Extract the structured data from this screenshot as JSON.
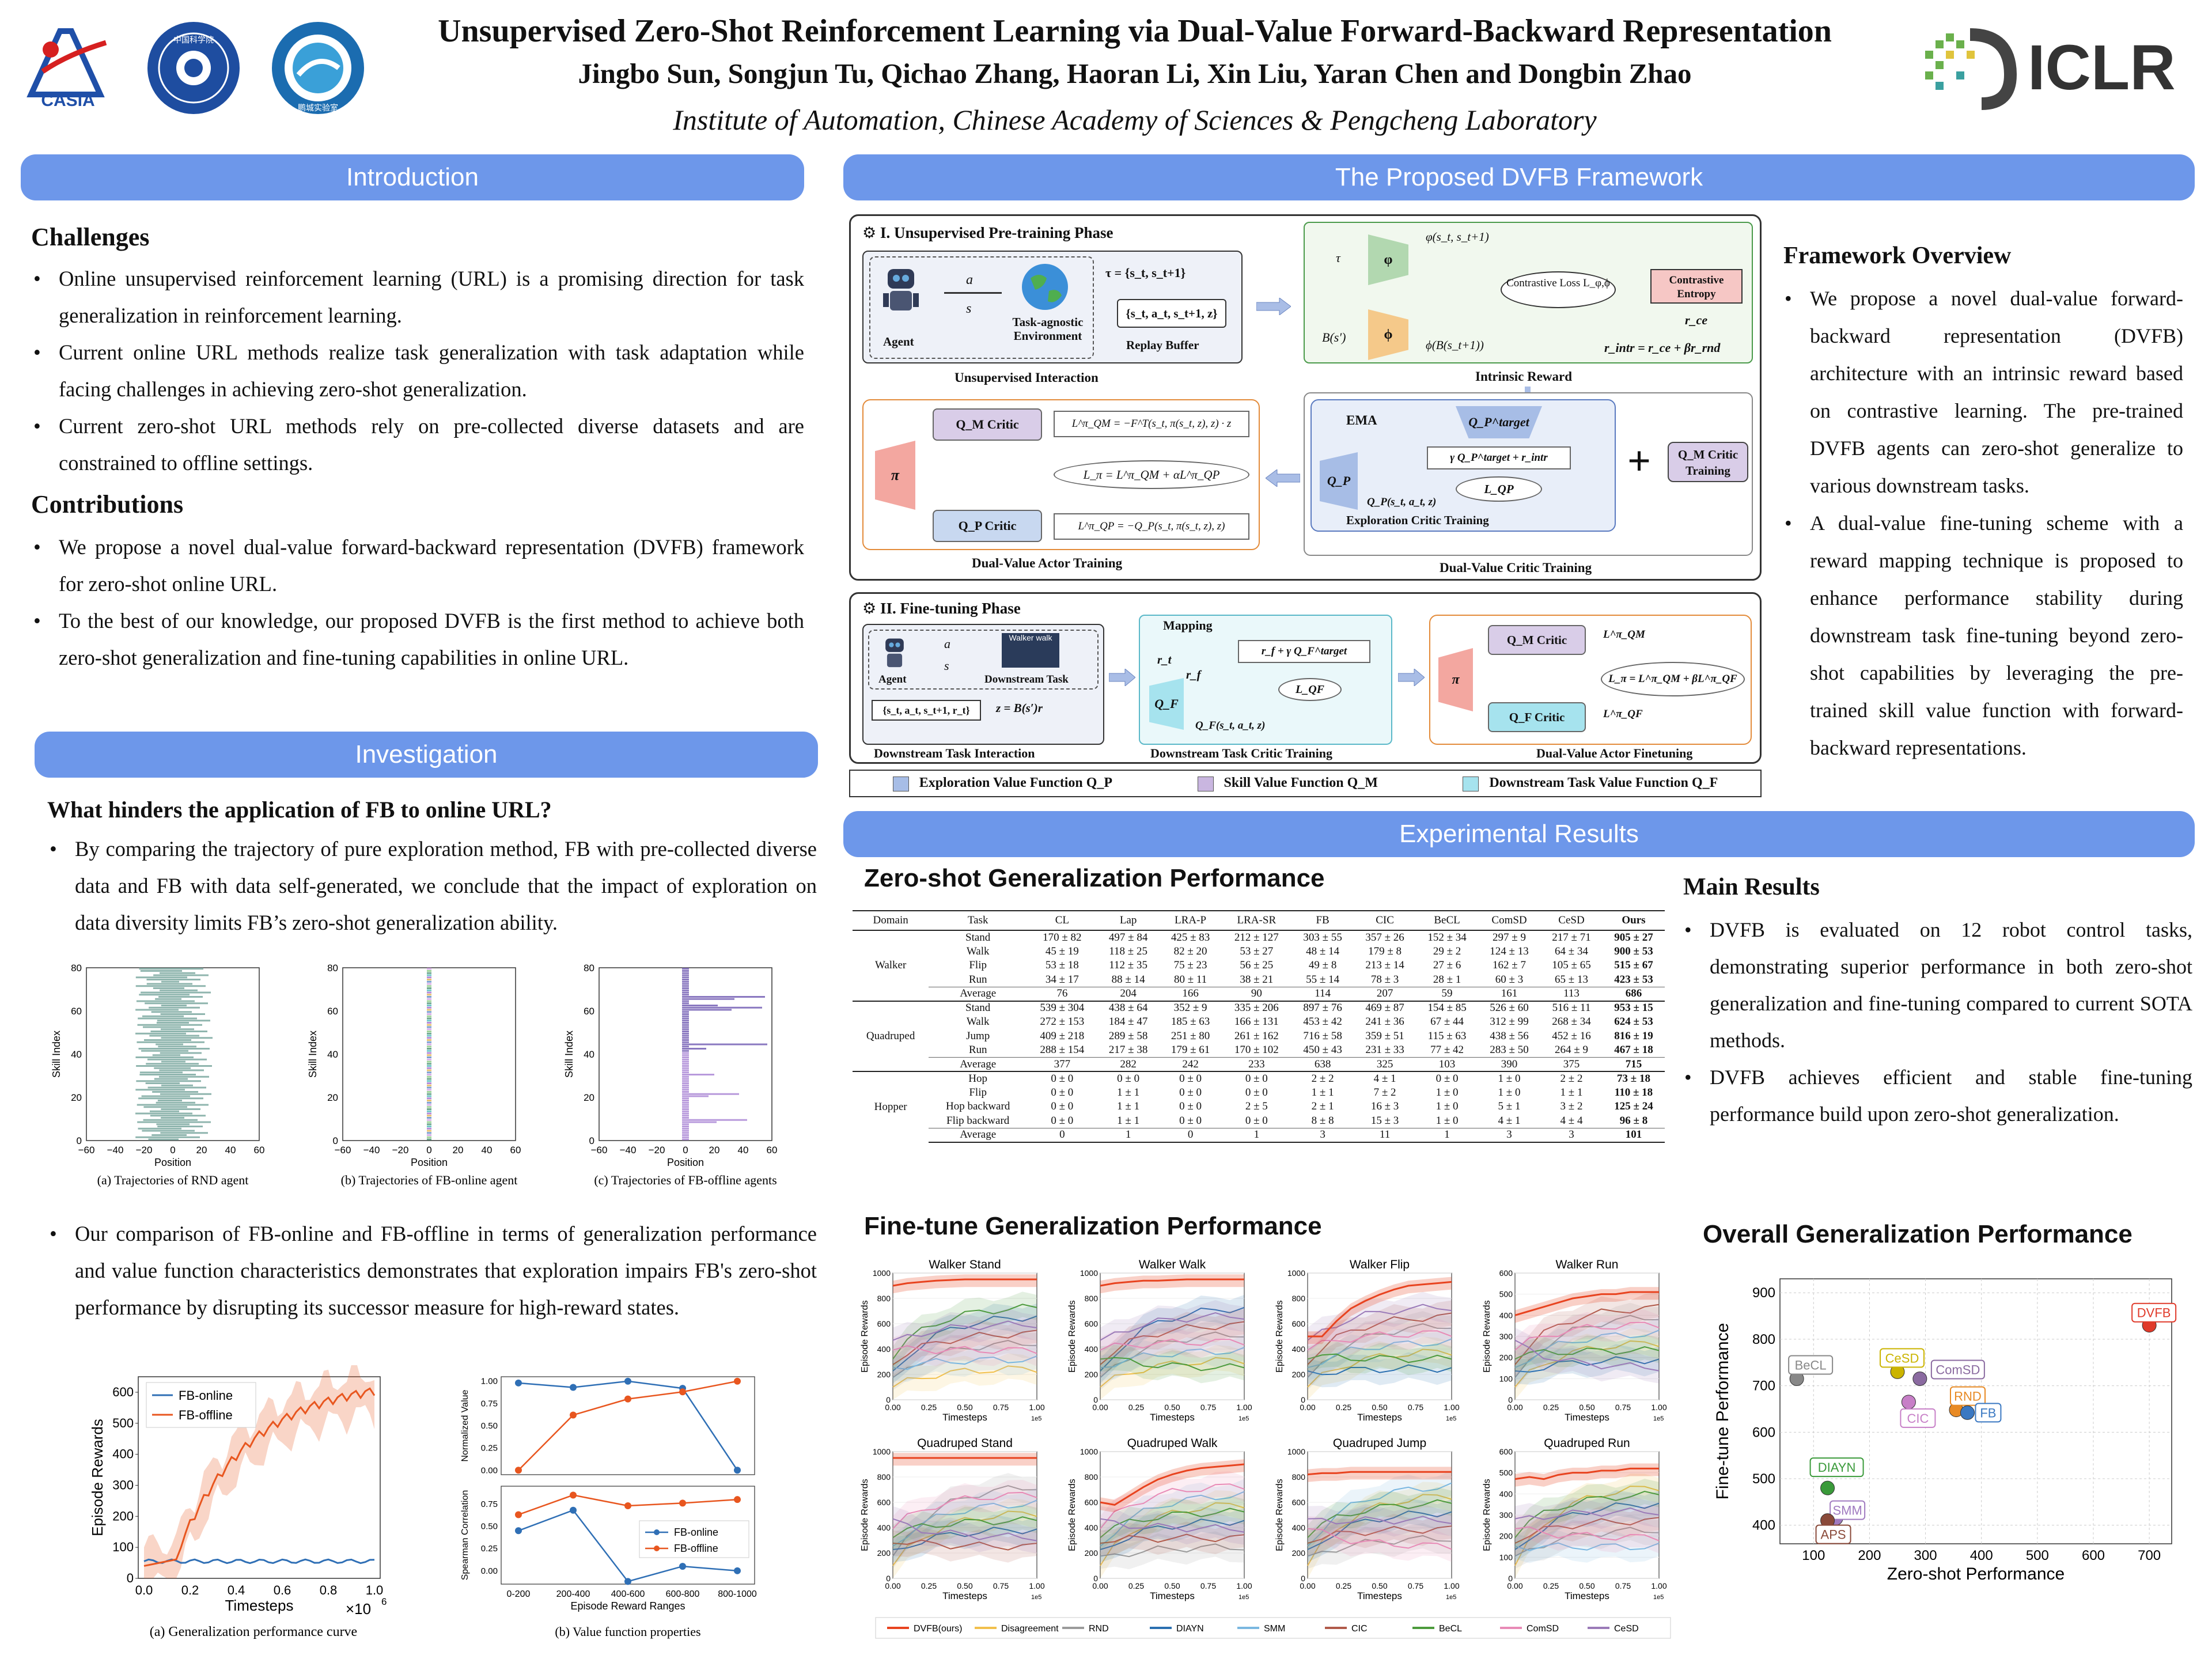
{
  "header": {
    "title": "Unsupervised Zero-Shot Reinforcement Learning via Dual-Value Forward-Backward Representation",
    "authors": "Jingbo Sun, Songjun Tu, Qichao Zhang, Haoran Li, Xin Liu, Yaran Chen and Dongbin Zhao",
    "affiliation": "Institute of Automation, Chinese Academy of Sciences & Pengcheng Laboratory",
    "logos": [
      "CASIA",
      "中国科学院",
      "鹏城实验室"
    ],
    "iclr": "ICLR"
  },
  "intro": {
    "banner": "Introduction",
    "challenges_h": "Challenges",
    "challenges": [
      "Online unsupervised reinforcement learning (URL) is a promising direction for task generalization in reinforcement learning.",
      "Current online URL methods realize task generalization with task adaptation while facing challenges in achieving zero-shot generalization.",
      "Current zero-shot URL methods rely on pre-collected diverse datasets and are constrained to offline settings."
    ],
    "contrib_h": "Contributions",
    "contributions": [
      "We propose a novel dual-value forward-backward representation (DVFB) framework for zero-shot online URL.",
      "To the best of our knowledge, our proposed DVFB is the first method to achieve both zero-shot generalization and fine-tuning capabilities in online URL."
    ]
  },
  "invest": {
    "banner": "Investigation",
    "question": "What hinders the application of FB to online URL?",
    "b1": "By comparing the trajectory of pure exploration method, FB with pre-collected diverse data and FB with data self-generated, we conclude that the impact of exploration on data diversity limits FB’s zero-shot generalization ability.",
    "b2": "Our comparison of FB-online and FB-offline in terms of generalization performance and value function characteristics demonstrates that exploration impairs FB's zero-shot performance by disrupting its successor measure for high-reward states.",
    "traj_ylabel": "Skill Index",
    "traj_xlabel": "Position",
    "traj_captions": [
      "(a) Trajectories of RND agent",
      "(b) Trajectories of FB-online agent",
      "(c) Trajectories of FB-offline agents"
    ],
    "traj_xticks": [
      "−60",
      "−40",
      "−20",
      "0",
      "20",
      "40",
      "60"
    ],
    "traj_yticks": [
      "0",
      "20",
      "40",
      "60",
      "80"
    ],
    "curve": {
      "ylabel": "Episode Rewards",
      "xlabel": "Timesteps",
      "scale": "×10",
      "scale_exp": "6",
      "legend": [
        "FB-online",
        "FB-offline"
      ],
      "yticks": [
        "0",
        "100",
        "200",
        "300",
        "400",
        "500",
        "600"
      ],
      "xticks": [
        "0.0",
        "0.2",
        "0.4",
        "0.6",
        "0.8",
        "1.0"
      ],
      "caption": "(a) Generalization performance curve"
    },
    "vprop": {
      "ylabel_top": "Normalized Value",
      "ylabel_bot": "Spearman Correlation",
      "xlabel": "Episode Reward Ranges",
      "categories": [
        "0-200",
        "200-400",
        "400-600",
        "600-800",
        "800-1000"
      ],
      "norm_online": [
        0.98,
        0.93,
        1.0,
        0.92,
        0.0
      ],
      "norm_offline": [
        0.0,
        0.62,
        0.8,
        0.88,
        1.0
      ],
      "sp_online": [
        0.45,
        0.68,
        -0.12,
        0.05,
        0.0
      ],
      "sp_offline": [
        0.63,
        0.85,
        0.73,
        0.76,
        0.8
      ],
      "yticks_top": [
        "0.00",
        "0.25",
        "0.50",
        "0.75",
        "1.00"
      ],
      "yticks_bot": [
        "0.00",
        "0.25",
        "0.50",
        "0.75"
      ],
      "legend": [
        "FB-online",
        "FB-offline"
      ],
      "caption": "(b) Value function properties"
    },
    "colors": {
      "online": "#2f6fb5",
      "offline": "#e8561f"
    }
  },
  "framework": {
    "banner": "The Proposed DVFB Framework",
    "p1": "I. Unsupervised Pre-training Phase",
    "p2": "II. Fine-tuning Phase",
    "agent": "Agent",
    "env": "Task-agnostic Environment",
    "tau": "τ = {s_t, s_t+1}",
    "buffer": "{s_t, a_t, s_t+1, z}",
    "replay": "Replay Buffer",
    "a": "a",
    "s": "s",
    "ui": "Unsupervised Interaction",
    "ir": "Intrinsic Reward",
    "contrast": "Contrastive Loss L_φ,ϕ",
    "ce": "Contrastive Entropy",
    "phi_top": "φ(s_t, s_t+1)",
    "phi_bot": "ϕ(B(s_t+1))",
    "r_ce": "r_ce",
    "rintr": "r_intr = r_ce + βr_rnd",
    "tau_l": "τ",
    "bsp": "B(s′)",
    "phi": "φ",
    "phi2": "ϕ",
    "qm_critic": "Q_M Critic",
    "qp_critic": "Q_P Critic",
    "pi": "π",
    "l_qm": "L^π_QM = −F^T(s_t, π(s_t, z), z) · z",
    "l_pi": "L_π = L^π_QM + αL^π_QP",
    "l_qp": "L^π_QP = −Q_P(s_t, π(s_t, z), z)",
    "dva": "Dual-Value Actor Training",
    "dvc": "Dual-Value Critic Training",
    "ema": "EMA",
    "qpt": "Q_P^target",
    "gamma": "γ Q_P^target + r_intr",
    "lqp": "L_QP",
    "qp_sa": "Q_P(s_t, a_t, z)",
    "qp": "Q_P",
    "ect": "Exploration Critic Training",
    "qm_train": "Q_M Critic Training",
    "plus": "+",
    "walker": "Walker walk",
    "dtask": "Downstream Task",
    "buf2": "{s_t, a_t, s_t+1, r_t}",
    "z": "z = B(s′)r",
    "dti": "Downstream Task Interaction",
    "mapping": "Mapping",
    "rt": "r_t",
    "rf": "r_f",
    "rfq": "r_f + γ Q_F^target",
    "lqf": "L_QF",
    "qf": "Q_F",
    "qf_sa": "Q_F(s_t, a_t, z)",
    "dtct": "Downstream Task Critic Training",
    "qf_critic": "Q_F Critic",
    "l_qm2": "L^π_QM",
    "l_qf": "L^π_QF",
    "l_pi2": "L_π = L^π_QM + βL^π_QF",
    "dvaf": "Dual-Value Actor Finetuning",
    "legend": [
      "Exploration Value Function Q_P",
      "Skill Value Function Q_M",
      "Downstream Task Value Function Q_F"
    ],
    "overview_h": "Framework Overview",
    "overview": [
      "We propose a novel dual-value forward-backward representation (DVFB) architecture with an intrinsic reward based on contrastive learning. The pre-trained DVFB agents can zero-shot generalize to various downstream tasks.",
      "A dual-value fine-tuning scheme with a reward mapping technique is proposed to enhance performance stability during downstream task fine-tuning beyond zero-shot capabilities by leveraging the pre-trained skill value function with forward-backward representations."
    ]
  },
  "results": {
    "banner": "Experimental Results",
    "zs_title": "Zero-shot Generalization Performance",
    "cols": [
      "Domain",
      "Task",
      "CL",
      "Lap",
      "LRA-P",
      "LRA-SR",
      "FB",
      "CIC",
      "BeCL",
      "ComSD",
      "CeSD",
      "Ours"
    ],
    "groups": [
      {
        "domain": "Walker",
        "rows": [
          [
            "Stand",
            "170 ± 82",
            "497 ± 84",
            "425 ± 83",
            "212 ± 127",
            "303 ± 55",
            "357 ± 26",
            "152 ± 34",
            "297 ± 9",
            "217 ± 71",
            "905 ± 27"
          ],
          [
            "Walk",
            "45 ± 19",
            "118 ± 25",
            "82 ± 20",
            "53 ± 27",
            "48 ± 14",
            "179 ± 8",
            "29 ± 2",
            "124 ± 13",
            "64 ± 34",
            "900 ± 53"
          ],
          [
            "Flip",
            "53 ± 18",
            "112 ± 35",
            "75 ± 23",
            "56 ± 25",
            "49 ± 8",
            "213 ± 14",
            "27 ± 6",
            "162 ± 7",
            "105 ± 65",
            "515 ± 67"
          ],
          [
            "Run",
            "34 ± 17",
            "88 ± 14",
            "80 ± 11",
            "38 ± 21",
            "55 ± 14",
            "78 ± 3",
            "28 ± 1",
            "60 ± 3",
            "65 ± 13",
            "423 ± 53"
          ],
          [
            "Average",
            "76",
            "204",
            "166",
            "90",
            "114",
            "207",
            "59",
            "161",
            "113",
            "686"
          ]
        ]
      },
      {
        "domain": "Quadruped",
        "rows": [
          [
            "Stand",
            "539 ± 304",
            "438 ± 64",
            "352 ± 9",
            "335 ± 206",
            "897 ± 76",
            "469 ± 87",
            "154 ± 85",
            "526 ± 60",
            "516 ± 11",
            "953 ± 15"
          ],
          [
            "Walk",
            "272 ± 153",
            "184 ± 47",
            "185 ± 63",
            "166 ± 131",
            "453 ± 42",
            "241 ± 36",
            "67 ± 44",
            "312 ± 99",
            "268 ± 34",
            "624 ± 53"
          ],
          [
            "Jump",
            "409 ± 218",
            "289 ± 58",
            "251 ± 80",
            "261 ± 162",
            "716 ± 58",
            "359 ± 51",
            "115 ± 63",
            "438 ± 56",
            "452 ± 16",
            "816 ± 19"
          ],
          [
            "Run",
            "288 ± 154",
            "217 ± 38",
            "179 ± 61",
            "170 ± 102",
            "450 ± 43",
            "231 ± 33",
            "77 ± 42",
            "283 ± 50",
            "264 ± 9",
            "467 ± 18"
          ],
          [
            "Average",
            "377",
            "282",
            "242",
            "233",
            "638",
            "325",
            "103",
            "390",
            "375",
            "715"
          ]
        ]
      },
      {
        "domain": "Hopper",
        "rows": [
          [
            "Hop",
            "0 ± 0",
            "0 ± 0",
            "0 ± 0",
            "0 ± 0",
            "2 ± 2",
            "4 ± 1",
            "0 ± 0",
            "1 ± 0",
            "2 ± 2",
            "73 ± 18"
          ],
          [
            "Flip",
            "0 ± 0",
            "1 ± 1",
            "0 ± 0",
            "0 ± 0",
            "1 ± 1",
            "7 ± 2",
            "1 ± 0",
            "1 ± 0",
            "1 ± 1",
            "110 ± 18"
          ],
          [
            "Hop backward",
            "0 ± 0",
            "1 ± 1",
            "0 ± 0",
            "2 ± 5",
            "2 ± 1",
            "16 ± 3",
            "1 ± 0",
            "5 ± 1",
            "3 ± 2",
            "125 ± 24"
          ],
          [
            "Flip backward",
            "0 ± 0",
            "1 ± 1",
            "0 ± 0",
            "0 ± 0",
            "8 ± 8",
            "15 ± 3",
            "1 ± 0",
            "4 ± 1",
            "4 ± 4",
            "96 ± 8"
          ],
          [
            "Average",
            "0",
            "1",
            "0",
            "1",
            "3",
            "11",
            "1",
            "3",
            "3",
            "101"
          ]
        ]
      }
    ],
    "main_h": "Main Results",
    "main": [
      "DVFB is evaluated on 12 robot control tasks, demonstrating superior performance in both zero-shot generalization and fine-tuning compared to current SOTA methods.",
      "DVFB achieves efficient and stable fine-tuning performance build upon zero-shot generalization."
    ],
    "ft_title": "Fine-tune Generalization Performance",
    "ft_legend": [
      "DVFB(ours)",
      "Disagreement",
      "RND",
      "DIAYN",
      "SMM",
      "CIC",
      "BeCL",
      "ComSD",
      "CeSD"
    ],
    "ft_colors": [
      "#e8431f",
      "#f2c04c",
      "#9a9a9a",
      "#2a6fb0",
      "#7ab7e0",
      "#b05a4a",
      "#4c9a3c",
      "#e88ab6",
      "#9a7ab8"
    ],
    "ft_ylabel": "Episode Rewards",
    "ft_xlabel": "Timesteps",
    "ft_exp": "1e5",
    "ft_xticks": [
      "0.00",
      "0.25",
      "0.50",
      "0.75",
      "1.00"
    ],
    "ft_panels": [
      {
        "title": "Walker Stand",
        "ymax": 1000,
        "yticks": [
          "0",
          "200",
          "400",
          "600",
          "800",
          "1000"
        ],
        "dvfb": [
          900,
          920,
          930,
          940,
          945,
          950,
          950,
          950,
          950,
          950,
          950
        ]
      },
      {
        "title": "Walker Walk",
        "ymax": 1000,
        "yticks": [
          "0",
          "200",
          "400",
          "600",
          "800",
          "1000"
        ],
        "dvfb": [
          900,
          920,
          930,
          940,
          940,
          945,
          950,
          950,
          950,
          950,
          950
        ]
      },
      {
        "title": "Walker Flip",
        "ymax": 1000,
        "yticks": [
          "0",
          "200",
          "400",
          "600",
          "800",
          "1000"
        ],
        "dvfb": [
          500,
          500,
          620,
          720,
          780,
          830,
          870,
          900,
          910,
          920,
          930
        ]
      },
      {
        "title": "Walker Run",
        "ymax": 600,
        "yticks": [
          "0",
          "100",
          "200",
          "300",
          "400",
          "500",
          "600"
        ],
        "dvfb": [
          400,
          420,
          440,
          460,
          480,
          490,
          500,
          500,
          510,
          510,
          510
        ]
      },
      {
        "title": "Quadruped Stand",
        "ymax": 1000,
        "yticks": [
          "0",
          "200",
          "400",
          "600",
          "800",
          "1000"
        ],
        "dvfb": [
          950,
          950,
          950,
          950,
          950,
          950,
          950,
          950,
          950,
          950,
          950
        ]
      },
      {
        "title": "Quadruped Walk",
        "ymax": 1000,
        "yticks": [
          "0",
          "200",
          "400",
          "600",
          "800",
          "1000"
        ],
        "dvfb": [
          600,
          580,
          650,
          720,
          780,
          820,
          850,
          870,
          880,
          890,
          900
        ]
      },
      {
        "title": "Quadruped Jump",
        "ymax": 1000,
        "yticks": [
          "0",
          "200",
          "400",
          "600",
          "800",
          "1000"
        ],
        "dvfb": [
          820,
          830,
          830,
          840,
          840,
          840,
          840,
          840,
          840,
          840,
          840
        ]
      },
      {
        "title": "Quadruped Run",
        "ymax": 600,
        "yticks": [
          "0",
          "100",
          "200",
          "300",
          "400",
          "500",
          "600"
        ],
        "dvfb": [
          470,
          480,
          470,
          490,
          500,
          500,
          510,
          510,
          520,
          520,
          520
        ]
      }
    ],
    "og_title": "Overall Generalization Performance",
    "og_xlabel": "Zero-shot Performance",
    "og_ylabel": "Fine-tune Performance",
    "og_xticks": [
      "100",
      "200",
      "300",
      "400",
      "500",
      "600",
      "700"
    ],
    "og_yticks": [
      "400",
      "500",
      "600",
      "700",
      "800",
      "900"
    ],
    "og_points": [
      {
        "name": "DVFB",
        "x": 700,
        "y": 830,
        "color": "#e03a2a"
      },
      {
        "name": "BeCL",
        "x": 70,
        "y": 715,
        "color": "#888888"
      },
      {
        "name": "CeSD",
        "x": 250,
        "y": 730,
        "color": "#cbb400"
      },
      {
        "name": "ComSD",
        "x": 290,
        "y": 715,
        "color": "#8a6aa0"
      },
      {
        "name": "RND",
        "x": 355,
        "y": 648,
        "color": "#e88a24"
      },
      {
        "name": "FB",
        "x": 375,
        "y": 642,
        "color": "#3a78c2"
      },
      {
        "name": "CIC",
        "x": 270,
        "y": 665,
        "color": "#c77fc7"
      },
      {
        "name": "DIAYN",
        "x": 125,
        "y": 480,
        "color": "#3a9a3a"
      },
      {
        "name": "SMM",
        "x": 140,
        "y": 415,
        "color": "#a07ac0"
      },
      {
        "name": "APS",
        "x": 125,
        "y": 410,
        "color": "#8a4a3a"
      }
    ]
  }
}
